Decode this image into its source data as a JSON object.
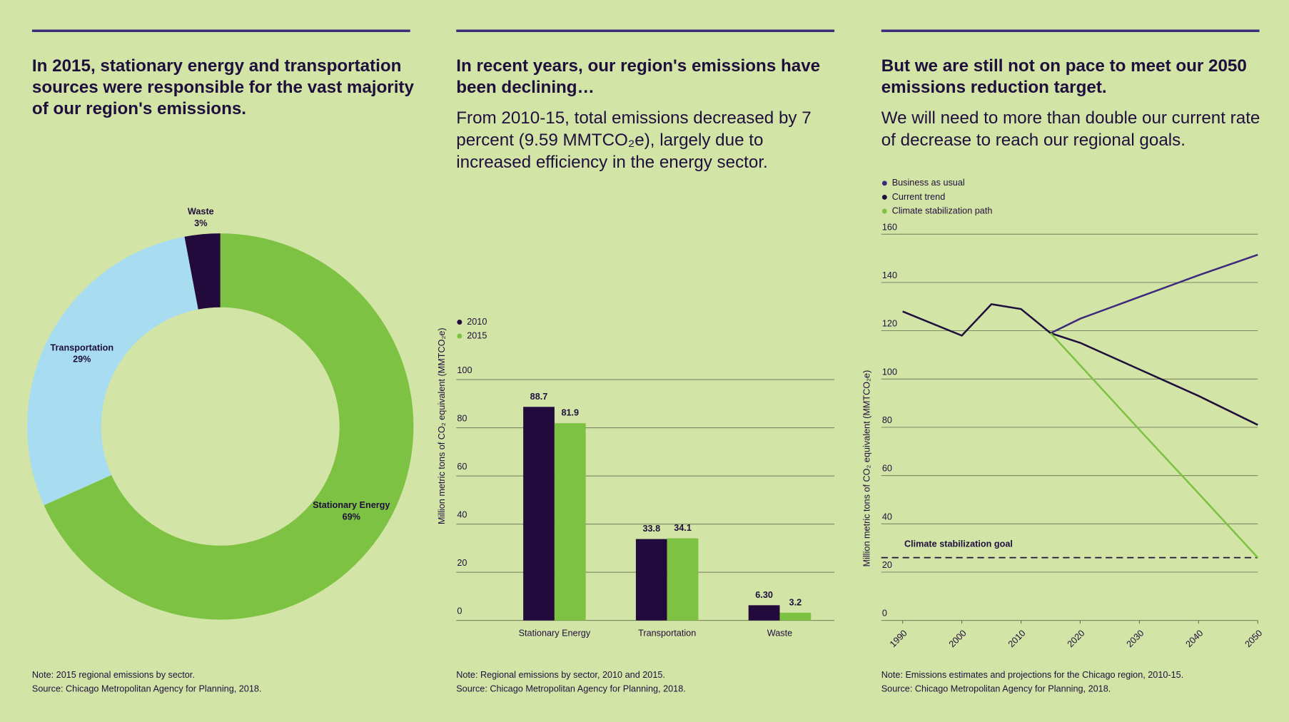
{
  "chart_data": [
    {
      "type": "pie",
      "donut": true,
      "title": "In 2015, stationary energy and transportation sources were responsible for the vast majority of our region's emissions.",
      "categories": [
        "Stationary Energy",
        "Transportation",
        "Waste"
      ],
      "values": [
        69,
        29,
        3
      ],
      "value_labels": [
        "69%",
        "29%",
        "3%"
      ],
      "colors": [
        "#7dc242",
        "#a8dcf0",
        "#230a3c"
      ],
      "note": "Note: 2015 regional emissions by sector.",
      "source": "Source: Chicago Metropolitan Agency for Planning, 2018."
    },
    {
      "type": "bar",
      "title": "In recent years, our region's emissions have been declining…",
      "subtitle": "From 2010-15, total emissions decreased by 7 percent (9.59 MMTCO₂e), largely due to increased efficiency in the energy sector.",
      "ylabel": "Million metric tons of CO₂ equivalent (MMTCO₂e)",
      "categories": [
        "Stationary Energy",
        "Transportation",
        "Waste"
      ],
      "series": [
        {
          "name": "2010",
          "color": "#230a3c",
          "values": [
            88.7,
            33.8,
            6.3
          ],
          "value_labels": [
            "88.7",
            "33.8",
            "6.30"
          ]
        },
        {
          "name": "2015",
          "color": "#7dc242",
          "values": [
            81.9,
            34.1,
            3.2
          ]
        }
      ],
      "ylim": [
        0,
        100
      ],
      "yticks": [
        0,
        20,
        40,
        60,
        80,
        100
      ],
      "grid": true,
      "note": "Note: Regional emissions by sector, 2010 and 2015.",
      "source": "Source: Chicago Metropolitan Agency for Planning, 2018."
    },
    {
      "type": "line",
      "title": "But we are still not on pace to meet our 2050 emissions reduction target.",
      "subtitle": "We will need to more than double our current rate of decrease to reach our regional goals.",
      "ylabel": "Million metric tons of CO₂ equivalent (MMTCO₂e)",
      "x": [
        1990,
        2000,
        2005,
        2010,
        2015,
        2020,
        2030,
        2040,
        2050
      ],
      "series": [
        {
          "name": "Business as usual",
          "color": "#3d2a7a",
          "values": [
            null,
            null,
            null,
            null,
            119,
            125,
            134,
            143,
            151.5
          ]
        },
        {
          "name": "Current trend",
          "color": "#1e0f3c",
          "values": [
            128,
            118,
            131,
            129,
            119,
            115,
            104,
            93,
            81
          ]
        },
        {
          "name": "Climate stabilization path",
          "color": "#7dc242",
          "values": [
            null,
            null,
            null,
            null,
            119,
            105.7,
            79,
            52.6,
            26
          ]
        }
      ],
      "reference_line": {
        "value": 26,
        "label": "Climate stabilization goal"
      },
      "xlim": [
        1990,
        2050
      ],
      "xticks": [
        1990,
        2000,
        2010,
        2020,
        2030,
        2040,
        2050
      ],
      "ylim": [
        0,
        160
      ],
      "yticks": [
        0,
        20,
        40,
        60,
        80,
        100,
        120,
        140,
        160
      ],
      "grid": true,
      "note": "Note: Emissions estimates and projections for the Chicago region, 2010-15.",
      "source": "Source: Chicago Metropolitan Agency for Planning, 2018."
    }
  ]
}
